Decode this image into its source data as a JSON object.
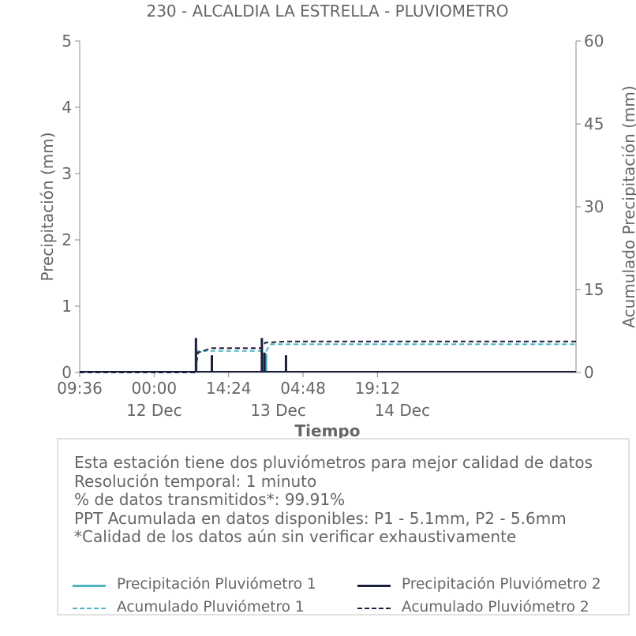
{
  "chart_data": {
    "type": "line",
    "title": "230 - ALCALDIA LA ESTRELLA - PLUVIOMETRO",
    "xlabel": "Tiempo",
    "ylabel_left": "Precipitación (mm)",
    "ylabel_right": "Acumulado Precipitación (mm)",
    "x_range": [
      "2023-12-11T09:36",
      "2023-12-15T09:36"
    ],
    "ylim_left": [
      0,
      5
    ],
    "ylim_right": [
      0,
      60
    ],
    "yticks_left": [
      "0",
      "1",
      "2",
      "3",
      "4",
      "5"
    ],
    "yticks_right": [
      "0",
      "15",
      "30",
      "45",
      "60"
    ],
    "xticks": [
      {
        "t": "2023-12-11T09:36",
        "label": "09:36"
      },
      {
        "t": "2023-12-12T00:00",
        "label": "00:00"
      },
      {
        "t": "2023-12-12T14:24",
        "label": "14:24"
      },
      {
        "t": "2023-12-13T04:48",
        "label": "04:48"
      },
      {
        "t": "2023-12-13T19:12",
        "label": "19:12"
      }
    ],
    "date_labels": [
      {
        "t": "2023-12-12T00:00",
        "label": "12 Dec"
      },
      {
        "t": "2023-12-13T00:00",
        "label": "13 Dec"
      },
      {
        "t": "2023-12-14T00:00",
        "label": "14 Dec"
      }
    ],
    "grid": false,
    "series": [
      {
        "name": "Precipitación Pluviómetro 1",
        "axis": "left",
        "style": "solid",
        "color": "#4fb3c8",
        "spikes": [
          {
            "t": "2023-12-12T08:10",
            "v": 0.22
          },
          {
            "t": "2023-12-12T21:40",
            "v": 0.28
          }
        ]
      },
      {
        "name": "Precipitación Pluviómetro 2",
        "axis": "left",
        "style": "solid",
        "color": "#1b1f3b",
        "spikes": [
          {
            "t": "2023-12-12T08:05",
            "v": 0.52
          },
          {
            "t": "2023-12-12T11:10",
            "v": 0.26
          },
          {
            "t": "2023-12-12T20:50",
            "v": 0.52
          },
          {
            "t": "2023-12-12T21:20",
            "v": 0.3
          },
          {
            "t": "2023-12-13T01:30",
            "v": 0.26
          }
        ]
      },
      {
        "name": "Acumulado Pluviómetro 1",
        "axis": "right",
        "style": "dashed",
        "color": "#4fb3c8",
        "points": [
          {
            "t": "2023-12-11T09:36",
            "v": 0
          },
          {
            "t": "2023-12-12T08:00",
            "v": 0
          },
          {
            "t": "2023-12-12T08:30",
            "v": 3.9
          },
          {
            "t": "2023-12-12T21:40",
            "v": 3.9
          },
          {
            "t": "2023-12-12T22:30",
            "v": 5.1
          },
          {
            "t": "2023-12-15T09:36",
            "v": 5.1
          }
        ]
      },
      {
        "name": "Acumulado Pluviómetro 2",
        "axis": "right",
        "style": "dashed",
        "color": "#1b1f3b",
        "points": [
          {
            "t": "2023-12-11T09:36",
            "v": 0
          },
          {
            "t": "2023-12-12T08:00",
            "v": 0
          },
          {
            "t": "2023-12-12T08:30",
            "v": 3.6
          },
          {
            "t": "2023-12-12T11:10",
            "v": 4.4
          },
          {
            "t": "2023-12-12T20:50",
            "v": 4.4
          },
          {
            "t": "2023-12-12T21:30",
            "v": 5.4
          },
          {
            "t": "2023-12-13T01:30",
            "v": 5.6
          },
          {
            "t": "2023-12-15T09:36",
            "v": 5.6
          }
        ]
      }
    ]
  },
  "info": {
    "lines": [
      "Esta estación tiene dos pluviómetros para mejor calidad de datos",
      "Resolución temporal: 1 minuto",
      "% de datos transmitidos*: 99.91%",
      "PPT Acumulada en datos disponibles: P1 - 5.1mm, P2 - 5.6mm",
      "*Calidad de los datos aún sin verificar exhaustivamente"
    ]
  },
  "legend": [
    {
      "label": "Precipitación Pluviómetro 1",
      "color": "#4fb3c8",
      "style": "solid"
    },
    {
      "label": "Precipitación Pluviómetro 2",
      "color": "#1b1f3b",
      "style": "solid"
    },
    {
      "label": "Acumulado Pluviómetro 1",
      "color": "#4fb3c8",
      "style": "dashed"
    },
    {
      "label": "Acumulado Pluviómetro 2",
      "color": "#1b1f3b",
      "style": "dashed"
    }
  ]
}
